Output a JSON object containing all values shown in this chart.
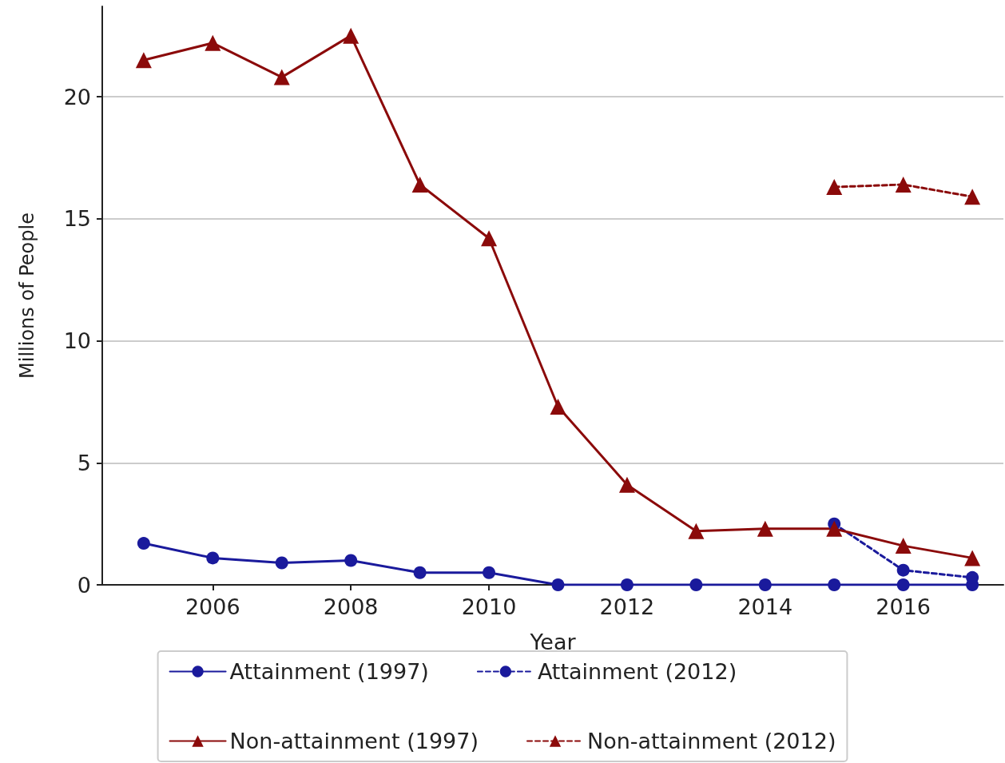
{
  "chart_data": {
    "type": "line",
    "xlabel": "Year",
    "ylabel": "Millions of People",
    "xlim": [
      2004.4,
      2017.45
    ],
    "xticks": [
      2006,
      2008,
      2010,
      2012,
      2014,
      2016
    ],
    "ylim": [
      0,
      23.7
    ],
    "yticks": [
      0,
      5,
      10,
      15,
      20
    ],
    "grid": "y",
    "legend": "bottom",
    "series": [
      {
        "name": "Attainment (1997)",
        "color": "#1a1a9c",
        "marker": "circle",
        "line_style": "solid",
        "x": [
          2005,
          2006,
          2007,
          2008,
          2009,
          2010,
          2011,
          2012,
          2013,
          2014,
          2015,
          2016,
          2017
        ],
        "values": [
          1.7,
          1.1,
          0.9,
          1.0,
          0.5,
          0.5,
          0,
          0,
          0,
          0,
          0,
          0,
          0
        ]
      },
      {
        "name": "Attainment (2012)",
        "color": "#1a1a9c",
        "marker": "circle",
        "line_style": "dashed",
        "x": [
          2015,
          2016,
          2017
        ],
        "values": [
          2.5,
          0.6,
          0.3
        ]
      },
      {
        "name": "Non-attainment (1997)",
        "color": "#8b0a0a",
        "marker": "triangle",
        "line_style": "solid",
        "x": [
          2005,
          2006,
          2007,
          2008,
          2009,
          2010,
          2011,
          2012,
          2013,
          2014,
          2015,
          2016,
          2017
        ],
        "values": [
          21.5,
          22.2,
          20.8,
          22.5,
          16.4,
          14.2,
          7.3,
          4.1,
          2.2,
          2.3,
          2.3,
          1.6,
          1.1
        ]
      },
      {
        "name": "Non-attainment (2012)",
        "color": "#8b0a0a",
        "marker": "triangle",
        "line_style": "dashed",
        "x": [
          2015,
          2016,
          2017
        ],
        "values": [
          16.3,
          16.4,
          15.9
        ]
      }
    ]
  }
}
